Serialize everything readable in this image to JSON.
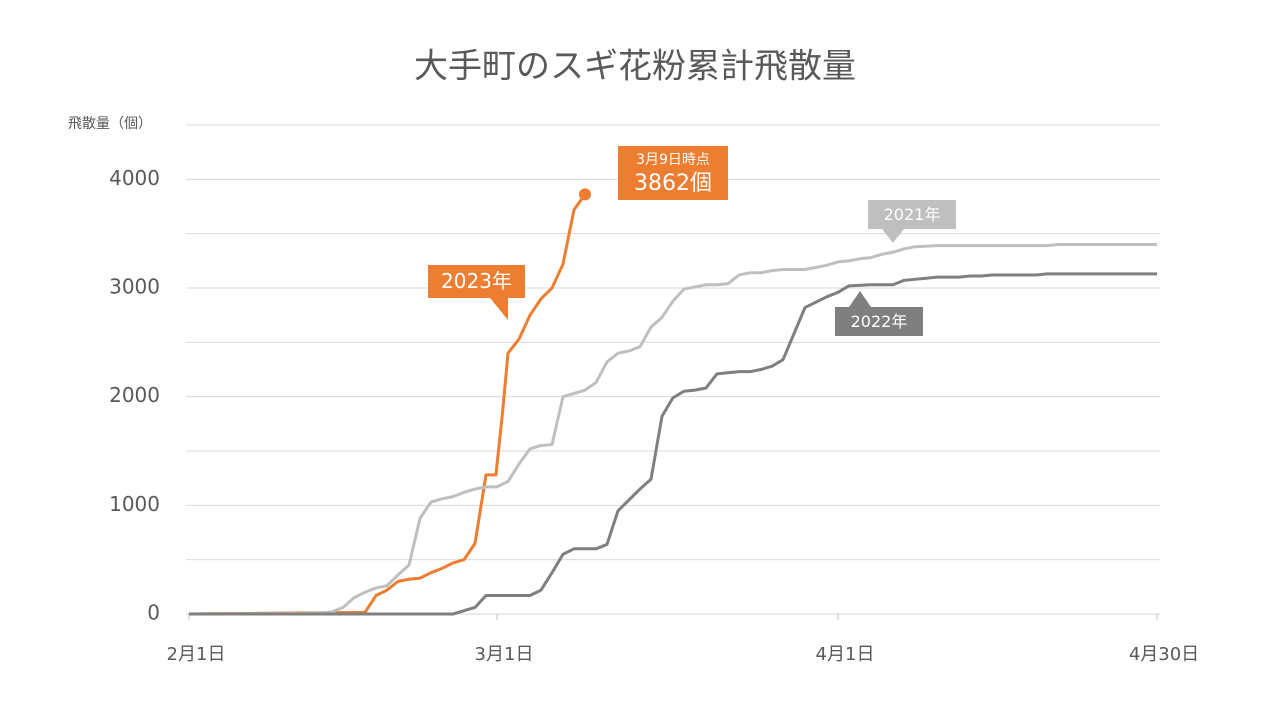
{
  "chart_data": {
    "type": "line",
    "title": "大手町のスギ花粉累計飛散量",
    "y_label": "飛散量（個）",
    "xlim": [
      0,
      88
    ],
    "xticks": [
      {
        "value": 0,
        "label": "2月1日"
      },
      {
        "value": 28,
        "label": "3月1日"
      },
      {
        "value": 59,
        "label": "4月1日"
      },
      {
        "value": 88,
        "label": "4月30日"
      }
    ],
    "ylim": [
      0,
      4500
    ],
    "yticks": [
      0,
      1000,
      2000,
      3000,
      4000
    ],
    "minor_yticks": [
      500,
      1500,
      2500,
      3500,
      4500
    ],
    "grid": true,
    "annotations": [
      {
        "text": "3月9日時点"
      },
      {
        "text": "3862個"
      }
    ],
    "series": [
      {
        "name": "2023年",
        "color": "#ed7d31",
        "x": [
          0,
          16,
          17,
          18,
          19,
          20,
          21,
          22,
          23,
          24,
          25,
          26,
          27,
          27.9,
          28.5,
          29,
          30,
          31,
          32,
          33,
          34,
          35,
          36
        ],
        "values": [
          0,
          15,
          170,
          220,
          300,
          320,
          330,
          380,
          420,
          470,
          500,
          650,
          1280,
          1280,
          1850,
          2400,
          2530,
          2750,
          2900,
          3000,
          3220,
          3720,
          3862
        ]
      },
      {
        "name": "2021年",
        "color": "#bfbfbf",
        "x": [
          0,
          10,
          12,
          13,
          14,
          15,
          16,
          17,
          18,
          19,
          20,
          21,
          22,
          23,
          24,
          25,
          26,
          27,
          28,
          29,
          30,
          31,
          32,
          33,
          34,
          35,
          36,
          37,
          38,
          39,
          40,
          41,
          42,
          43,
          44,
          45,
          46,
          47,
          48,
          49,
          50,
          51,
          52,
          53,
          54,
          56,
          57,
          58,
          59,
          60,
          61,
          62,
          63,
          64,
          65,
          66,
          68,
          78,
          79,
          88
        ],
        "values": [
          0,
          5,
          10,
          20,
          60,
          150,
          200,
          240,
          260,
          360,
          450,
          880,
          1030,
          1060,
          1080,
          1120,
          1150,
          1170,
          1170,
          1220,
          1380,
          1520,
          1550,
          1560,
          2000,
          2030,
          2060,
          2130,
          2320,
          2400,
          2420,
          2460,
          2640,
          2730,
          2880,
          2990,
          3010,
          3030,
          3030,
          3040,
          3120,
          3140,
          3140,
          3160,
          3170,
          3170,
          3190,
          3210,
          3240,
          3250,
          3270,
          3280,
          3310,
          3330,
          3360,
          3380,
          3390,
          3390,
          3400,
          3400
        ]
      },
      {
        "name": "2022年",
        "color": "#7f7f7f",
        "x": [
          0,
          24,
          25,
          26,
          27,
          31,
          32,
          33,
          34,
          35,
          37,
          38,
          39,
          40,
          41,
          42,
          43,
          44,
          45,
          46,
          47,
          48,
          49,
          50,
          51,
          52,
          53,
          54,
          55,
          56,
          57,
          58,
          59,
          60,
          62,
          64,
          65,
          66,
          67,
          68,
          70,
          71,
          72,
          73,
          77,
          78,
          88
        ],
        "values": [
          0,
          0,
          30,
          60,
          170,
          170,
          220,
          380,
          550,
          600,
          600,
          640,
          950,
          1050,
          1150,
          1240,
          1820,
          1990,
          2050,
          2060,
          2080,
          2210,
          2220,
          2230,
          2230,
          2250,
          2280,
          2340,
          2580,
          2820,
          2870,
          2920,
          2960,
          3020,
          3030,
          3030,
          3070,
          3080,
          3090,
          3100,
          3100,
          3110,
          3110,
          3120,
          3120,
          3130,
          3130
        ]
      }
    ]
  }
}
